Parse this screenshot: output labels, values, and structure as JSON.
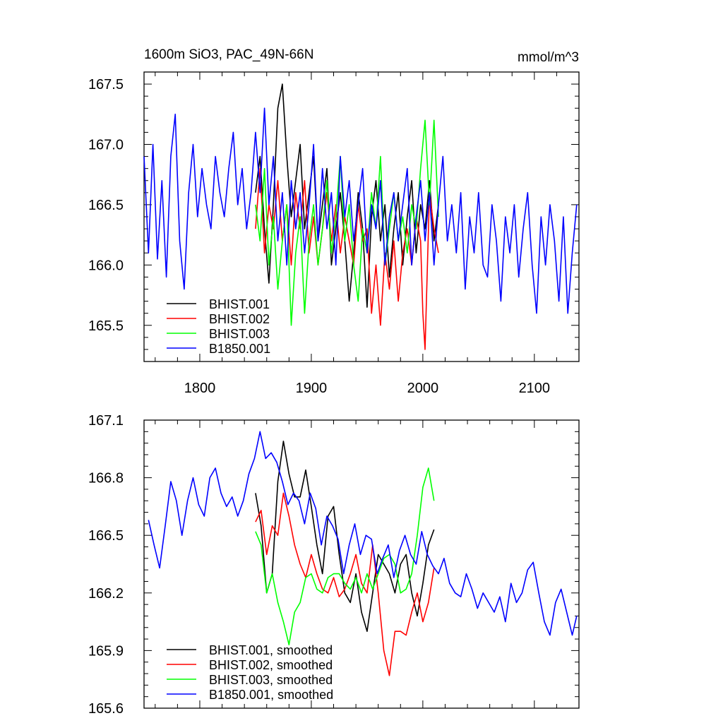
{
  "header": {
    "title": "1600m SiO3, PAC_49N-66N",
    "units": "mmol/m^3"
  },
  "colors": {
    "BHIST.001": "#000000",
    "BHIST.002": "#ff0000",
    "BHIST.003": "#00ff00",
    "B1850.001": "#0000ff"
  },
  "chart_data": [
    {
      "type": "line",
      "title": "1600m SiO3, PAC_49N-66N",
      "units_label": "mmol/m^3",
      "xlim": [
        1750,
        2140
      ],
      "ylim": [
        165.2,
        167.6
      ],
      "xticks": [
        1800,
        1900,
        2000,
        2100
      ],
      "yticks": [
        165.5,
        166.0,
        166.5,
        167.0,
        167.5
      ],
      "ytick_labels": [
        "165.5",
        "166.0",
        "166.5",
        "167.0",
        "167.5"
      ],
      "legend": "bottom-left",
      "series": [
        {
          "name": "BHIST.001",
          "color": "#000000",
          "x": [
            1850,
            1854,
            1858,
            1862,
            1866,
            1870,
            1874,
            1878,
            1882,
            1886,
            1890,
            1894,
            1898,
            1902,
            1906,
            1910,
            1914,
            1918,
            1922,
            1926,
            1930,
            1934,
            1938,
            1942,
            1946,
            1950,
            1954,
            1958,
            1962,
            1966,
            1970,
            1974,
            1978,
            1982,
            1986,
            1990,
            1994,
            1998,
            2002,
            2006,
            2010,
            2014
          ],
          "values": [
            166.6,
            166.9,
            166.3,
            165.85,
            166.5,
            167.3,
            167.5,
            166.9,
            166.4,
            166.7,
            167.0,
            166.3,
            166.6,
            166.9,
            166.2,
            166.5,
            166.8,
            166.0,
            166.3,
            166.6,
            166.2,
            165.7,
            166.1,
            166.6,
            166.3,
            165.65,
            166.4,
            166.7,
            166.2,
            166.5,
            165.9,
            166.3,
            166.6,
            166.0,
            166.4,
            166.7,
            166.1,
            166.5,
            166.3,
            166.7,
            166.2,
            166.5
          ]
        },
        {
          "name": "BHIST.002",
          "color": "#ff0000",
          "x": [
            1850,
            1854,
            1858,
            1862,
            1866,
            1870,
            1874,
            1878,
            1882,
            1886,
            1890,
            1894,
            1898,
            1902,
            1906,
            1910,
            1914,
            1918,
            1922,
            1926,
            1930,
            1934,
            1938,
            1942,
            1946,
            1950,
            1954,
            1958,
            1962,
            1966,
            1970,
            1974,
            1978,
            1982,
            1986,
            1990,
            1994,
            1998,
            2000,
            2002,
            2006,
            2010,
            2014
          ],
          "values": [
            166.3,
            166.8,
            166.1,
            166.5,
            166.3,
            166.7,
            166.2,
            166.5,
            166.0,
            166.6,
            166.3,
            166.7,
            166.1,
            166.4,
            166.0,
            166.3,
            166.6,
            166.2,
            166.5,
            166.1,
            166.4,
            166.2,
            166.0,
            166.5,
            166.2,
            166.3,
            165.6,
            166.0,
            165.5,
            166.1,
            165.8,
            166.2,
            165.7,
            166.1,
            166.3,
            166.0,
            166.4,
            166.2,
            165.6,
            165.3,
            166.6,
            166.3,
            166.1
          ]
        },
        {
          "name": "BHIST.003",
          "color": "#00ff00",
          "x": [
            1850,
            1854,
            1858,
            1862,
            1866,
            1870,
            1874,
            1878,
            1882,
            1886,
            1890,
            1894,
            1898,
            1902,
            1906,
            1910,
            1914,
            1918,
            1922,
            1926,
            1930,
            1934,
            1938,
            1942,
            1946,
            1950,
            1954,
            1958,
            1962,
            1966,
            1970,
            1974,
            1978,
            1982,
            1986,
            1990,
            1994,
            1998,
            2002,
            2006,
            2010,
            2014
          ],
          "values": [
            166.5,
            166.2,
            166.8,
            166.0,
            166.4,
            165.8,
            166.2,
            166.5,
            165.5,
            166.1,
            166.4,
            165.6,
            166.2,
            166.5,
            166.0,
            166.3,
            166.7,
            166.1,
            166.4,
            166.9,
            166.2,
            166.5,
            166.0,
            165.7,
            166.3,
            166.1,
            166.6,
            166.3,
            166.9,
            166.0,
            166.3,
            166.6,
            166.2,
            166.4,
            166.1,
            166.5,
            166.3,
            166.8,
            167.2,
            166.5,
            167.2,
            166.4
          ]
        },
        {
          "name": "B1850.001",
          "color": "#0000ff",
          "x": [
            1750,
            1754,
            1758,
            1762,
            1766,
            1770,
            1774,
            1778,
            1782,
            1786,
            1790,
            1794,
            1798,
            1802,
            1806,
            1810,
            1814,
            1818,
            1822,
            1826,
            1830,
            1834,
            1838,
            1842,
            1846,
            1850,
            1854,
            1858,
            1862,
            1866,
            1870,
            1874,
            1878,
            1882,
            1886,
            1890,
            1894,
            1898,
            1902,
            1906,
            1910,
            1914,
            1918,
            1922,
            1926,
            1930,
            1934,
            1938,
            1942,
            1946,
            1950,
            1954,
            1958,
            1962,
            1966,
            1970,
            1974,
            1978,
            1982,
            1986,
            1990,
            1994,
            1998,
            2002,
            2006,
            2010,
            2014,
            2018,
            2022,
            2026,
            2030,
            2034,
            2038,
            2042,
            2046,
            2050,
            2054,
            2058,
            2062,
            2066,
            2070,
            2074,
            2078,
            2082,
            2086,
            2090,
            2094,
            2098,
            2102,
            2106,
            2110,
            2114,
            2118,
            2122,
            2126,
            2130,
            2134,
            2138
          ],
          "values": [
            166.9,
            166.1,
            167.0,
            166.05,
            166.7,
            165.9,
            166.9,
            167.25,
            166.2,
            165.8,
            166.6,
            167.0,
            166.4,
            166.8,
            166.5,
            166.3,
            166.9,
            166.6,
            166.4,
            166.8,
            167.1,
            166.5,
            166.8,
            166.3,
            166.6,
            167.1,
            166.6,
            167.3,
            166.5,
            166.9,
            166.2,
            166.6,
            166.0,
            166.7,
            166.3,
            166.6,
            166.1,
            166.5,
            167.0,
            166.2,
            166.8,
            166.3,
            166.6,
            166.0,
            166.9,
            166.4,
            166.7,
            166.2,
            166.5,
            166.8,
            166.1,
            166.5,
            166.3,
            166.7,
            166.0,
            166.4,
            166.6,
            166.2,
            166.5,
            166.8,
            166.0,
            166.4,
            166.7,
            166.2,
            166.6,
            166.0,
            166.5,
            166.9,
            166.2,
            166.5,
            166.1,
            166.6,
            165.8,
            166.4,
            166.1,
            166.6,
            166.0,
            165.9,
            166.5,
            166.2,
            165.7,
            166.4,
            166.1,
            166.5,
            165.9,
            166.3,
            166.6,
            166.0,
            165.6,
            166.4,
            166.0,
            166.5,
            166.2,
            165.7,
            166.4,
            165.6,
            166.1,
            166.5
          ]
        }
      ]
    },
    {
      "type": "line",
      "title": "",
      "xlim": [
        1750,
        2140
      ],
      "ylim": [
        165.6,
        167.1
      ],
      "xticks": [
        1800,
        1900,
        2000,
        2100
      ],
      "yticks": [
        165.6,
        165.9,
        166.2,
        166.5,
        166.8,
        167.1
      ],
      "ytick_labels": [
        "165.6",
        "165.9",
        "166.2",
        "166.5",
        "166.8",
        "167.1"
      ],
      "legend": "bottom-left",
      "series": [
        {
          "name": "BHIST.001, smoothed",
          "color": "#000000",
          "x": [
            1850,
            1855,
            1860,
            1865,
            1870,
            1875,
            1880,
            1885,
            1890,
            1895,
            1900,
            1905,
            1910,
            1915,
            1920,
            1925,
            1930,
            1935,
            1940,
            1945,
            1950,
            1955,
            1960,
            1965,
            1970,
            1975,
            1980,
            1985,
            1990,
            1995,
            2000,
            2005,
            2010
          ],
          "values": [
            166.72,
            166.55,
            166.2,
            166.3,
            166.78,
            166.99,
            166.82,
            166.7,
            166.7,
            166.84,
            166.65,
            166.45,
            166.3,
            166.6,
            166.65,
            166.4,
            166.2,
            166.15,
            166.3,
            166.1,
            166.0,
            166.2,
            166.4,
            166.35,
            166.3,
            166.2,
            166.35,
            166.4,
            166.2,
            166.08,
            166.25,
            166.45,
            166.53
          ]
        },
        {
          "name": "BHIST.002, smoothed",
          "color": "#ff0000",
          "x": [
            1850,
            1855,
            1860,
            1865,
            1870,
            1875,
            1880,
            1885,
            1890,
            1895,
            1900,
            1905,
            1910,
            1915,
            1920,
            1925,
            1930,
            1935,
            1940,
            1945,
            1950,
            1955,
            1960,
            1965,
            1970,
            1975,
            1980,
            1985,
            1990,
            1995,
            2000,
            2005,
            2010
          ],
          "values": [
            166.57,
            166.63,
            166.4,
            166.55,
            166.5,
            166.72,
            166.6,
            166.45,
            166.35,
            166.28,
            166.4,
            166.3,
            166.22,
            166.2,
            166.28,
            166.18,
            166.22,
            166.3,
            166.4,
            166.25,
            166.2,
            166.45,
            166.2,
            165.9,
            165.77,
            166.0,
            166.0,
            165.98,
            166.1,
            166.2,
            166.05,
            166.15,
            166.33
          ]
        },
        {
          "name": "BHIST.003, smoothed",
          "color": "#00ff00",
          "x": [
            1850,
            1855,
            1860,
            1865,
            1870,
            1875,
            1880,
            1885,
            1890,
            1895,
            1900,
            1905,
            1910,
            1915,
            1920,
            1925,
            1930,
            1935,
            1940,
            1945,
            1950,
            1955,
            1960,
            1965,
            1970,
            1975,
            1980,
            1985,
            1990,
            1995,
            2000,
            2005,
            2010
          ],
          "values": [
            166.52,
            166.45,
            166.2,
            166.3,
            166.15,
            166.05,
            165.93,
            166.1,
            166.15,
            166.28,
            166.3,
            166.22,
            166.2,
            166.28,
            166.3,
            166.3,
            166.25,
            166.22,
            166.28,
            166.2,
            166.3,
            166.22,
            166.3,
            166.38,
            166.4,
            166.35,
            166.2,
            166.22,
            166.3,
            166.5,
            166.75,
            166.85,
            166.68
          ]
        },
        {
          "name": "B1850.001, smoothed",
          "color": "#0000ff",
          "x": [
            1754,
            1759,
            1764,
            1769,
            1774,
            1779,
            1784,
            1789,
            1794,
            1799,
            1804,
            1809,
            1814,
            1819,
            1824,
            1829,
            1834,
            1839,
            1844,
            1849,
            1854,
            1859,
            1864,
            1869,
            1874,
            1879,
            1884,
            1889,
            1894,
            1899,
            1904,
            1909,
            1914,
            1919,
            1924,
            1929,
            1934,
            1939,
            1944,
            1949,
            1954,
            1959,
            1964,
            1969,
            1974,
            1979,
            1984,
            1989,
            1994,
            1999,
            2004,
            2009,
            2014,
            2019,
            2024,
            2029,
            2034,
            2039,
            2044,
            2049,
            2054,
            2059,
            2064,
            2069,
            2074,
            2079,
            2084,
            2089,
            2094,
            2099,
            2104,
            2109,
            2114,
            2119,
            2124,
            2129,
            2134,
            2138
          ],
          "values": [
            166.58,
            166.45,
            166.33,
            166.55,
            166.78,
            166.68,
            166.5,
            166.68,
            166.8,
            166.66,
            166.6,
            166.8,
            166.85,
            166.72,
            166.65,
            166.7,
            166.6,
            166.68,
            166.82,
            166.9,
            167.04,
            166.9,
            166.93,
            166.88,
            166.78,
            166.66,
            166.72,
            166.68,
            166.56,
            166.72,
            166.64,
            166.45,
            166.6,
            166.55,
            166.48,
            166.3,
            166.45,
            166.56,
            166.4,
            166.5,
            166.48,
            166.3,
            166.38,
            166.45,
            166.28,
            166.42,
            166.5,
            166.4,
            166.35,
            166.52,
            166.4,
            166.34,
            166.3,
            166.38,
            166.25,
            166.2,
            166.18,
            166.3,
            166.22,
            166.12,
            166.2,
            166.15,
            166.1,
            166.18,
            166.05,
            166.25,
            166.15,
            166.2,
            166.32,
            166.36,
            166.2,
            166.05,
            165.98,
            166.15,
            166.22,
            166.1,
            165.98,
            166.08
          ]
        }
      ]
    }
  ],
  "legends": [
    [
      "BHIST.001",
      "BHIST.002",
      "BHIST.003",
      "B1850.001"
    ],
    [
      "BHIST.001, smoothed",
      "BHIST.002, smoothed",
      "BHIST.003, smoothed",
      "B1850.001, smoothed"
    ]
  ]
}
